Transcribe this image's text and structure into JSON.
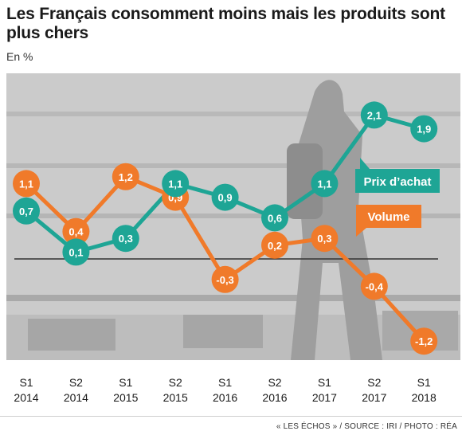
{
  "header": {
    "title": "Les Français consomment moins mais les produits sont plus chers",
    "subtitle": "En %"
  },
  "footer": {
    "credit": "« LES ÉCHOS » / SOURCE : IRI / PHOTO : RÉA"
  },
  "colors": {
    "prix": "#1ea595",
    "volume": "#f07a2a",
    "photo_bg": "#cbcbcb",
    "zero_line": "#333333"
  },
  "chart_data": {
    "type": "line",
    "title": "Les Français consomment moins mais les produits sont plus chers",
    "ylabel": "En %",
    "categories": [
      "S1 2014",
      "S2 2014",
      "S1 2015",
      "S2 2015",
      "S1 2016",
      "S2 2016",
      "S1 2017",
      "S2 2017",
      "S1 2018"
    ],
    "category_lines": [
      [
        "S1",
        "2014"
      ],
      [
        "S2",
        "2014"
      ],
      [
        "S1",
        "2015"
      ],
      [
        "S2",
        "2015"
      ],
      [
        "S1",
        "2016"
      ],
      [
        "S2",
        "2016"
      ],
      [
        "S1",
        "2017"
      ],
      [
        "S2",
        "2017"
      ],
      [
        "S1",
        "2018"
      ]
    ],
    "ylim": [
      -1.4,
      2.3
    ],
    "grid": false,
    "series": [
      {
        "name": "Prix d’achat",
        "color": "#1ea595",
        "values": [
          0.7,
          0.1,
          0.3,
          1.1,
          0.9,
          0.6,
          1.1,
          2.1,
          1.9
        ],
        "labels": [
          "0,7",
          "0,1",
          "0,3",
          "1,1",
          "0,9",
          "0,6",
          "1,1",
          "2,1",
          "1,9"
        ]
      },
      {
        "name": "Volume",
        "color": "#f07a2a",
        "values": [
          1.1,
          0.4,
          1.2,
          0.9,
          -0.3,
          0.2,
          0.3,
          -0.4,
          -1.2
        ],
        "labels": [
          "1,1",
          "0,4",
          "1,2",
          "0,9",
          "-0,3",
          "0,2",
          "0,3",
          "-0,4",
          "-1,2"
        ]
      }
    ]
  }
}
